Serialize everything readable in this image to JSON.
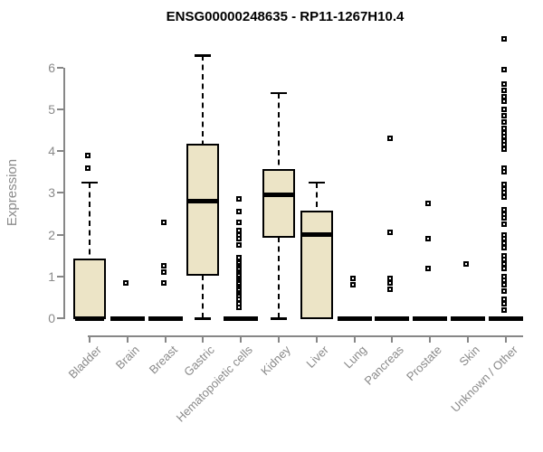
{
  "title": "ENSG00000248635 - RP11-1267H10.4",
  "chart_data": {
    "type": "boxplot",
    "title": "ENSG00000248635 - RP11-1267H10.4",
    "xlabel": "",
    "ylabel": "Expression",
    "ylim": [
      0,
      6.8
    ],
    "yticks": [
      0,
      1,
      2,
      3,
      4,
      5,
      6
    ],
    "grid": false,
    "legend": "none",
    "box_fill": "#ece4c6",
    "box_border": "#000000",
    "axis_color": "#878787",
    "tick_label_color": "#8a8a8a",
    "title_color": "#000000",
    "categories": [
      "Bladder",
      "Brain",
      "Breast",
      "Gastric",
      "Hematopoietic cells",
      "Kidney",
      "Liver",
      "Lung",
      "Pancreas",
      "Prostate",
      "Skin",
      "Unknown / Other"
    ],
    "series": [
      {
        "category": "Bladder",
        "q1": 0,
        "median": 0,
        "q3": 1.4,
        "whisker_low": 0,
        "whisker_high": 3.25,
        "outliers": [
          3.6,
          3.9
        ]
      },
      {
        "category": "Brain",
        "q1": 0,
        "median": 0,
        "q3": 0,
        "whisker_low": 0,
        "whisker_high": 0,
        "outliers": [
          0.85
        ]
      },
      {
        "category": "Breast",
        "q1": 0,
        "median": 0,
        "q3": 0,
        "whisker_low": 0,
        "whisker_high": 0,
        "outliers": [
          0.85,
          1.1,
          1.25,
          2.3
        ]
      },
      {
        "category": "Gastric",
        "q1": 1.05,
        "median": 2.8,
        "q3": 4.15,
        "whisker_low": 0,
        "whisker_high": 6.3,
        "outliers": []
      },
      {
        "category": "Hematopoietic cells",
        "q1": 0,
        "median": 0,
        "q3": 0,
        "whisker_low": 0,
        "whisker_high": 0,
        "outliers": [
          0.25,
          0.35,
          0.45,
          0.55,
          0.6,
          0.65,
          0.7,
          0.75,
          0.8,
          0.85,
          0.9,
          0.95,
          1.0,
          1.05,
          1.1,
          1.15,
          1.2,
          1.25,
          1.3,
          1.35,
          1.4,
          1.45,
          1.75,
          1.9,
          2.0,
          2.1,
          2.3,
          2.55,
          2.85
        ]
      },
      {
        "category": "Kidney",
        "q1": 1.95,
        "median": 2.95,
        "q3": 3.55,
        "whisker_low": 0,
        "whisker_high": 5.4,
        "outliers": []
      },
      {
        "category": "Liver",
        "q1": 0,
        "median": 2.0,
        "q3": 2.55,
        "whisker_low": 0,
        "whisker_high": 3.25,
        "outliers": []
      },
      {
        "category": "Lung",
        "q1": 0,
        "median": 0,
        "q3": 0,
        "whisker_low": 0,
        "whisker_high": 0,
        "outliers": [
          0.8,
          0.95
        ]
      },
      {
        "category": "Pancreas",
        "q1": 0,
        "median": 0,
        "q3": 0,
        "whisker_low": 0,
        "whisker_high": 0,
        "outliers": [
          0.7,
          0.85,
          0.95,
          2.05,
          4.3
        ]
      },
      {
        "category": "Prostate",
        "q1": 0,
        "median": 0,
        "q3": 0,
        "whisker_low": 0,
        "whisker_high": 0,
        "outliers": [
          1.2,
          1.9,
          2.75
        ]
      },
      {
        "category": "Skin",
        "q1": 0,
        "median": 0,
        "q3": 0,
        "whisker_low": 0,
        "whisker_high": 0,
        "outliers": [
          1.3
        ]
      },
      {
        "category": "Unknown / Other",
        "q1": 0,
        "median": 0,
        "q3": 0,
        "whisker_low": 0,
        "whisker_high": 0,
        "outliers": [
          0.2,
          0.35,
          0.45,
          0.65,
          0.8,
          0.9,
          1.0,
          1.2,
          1.3,
          1.4,
          1.5,
          1.7,
          1.8,
          1.9,
          2.0,
          2.25,
          2.4,
          2.5,
          2.6,
          2.9,
          3.0,
          3.1,
          3.2,
          3.5,
          3.6,
          4.05,
          4.15,
          4.25,
          4.35,
          4.45,
          4.55,
          4.7,
          4.85,
          5.0,
          5.2,
          5.3,
          5.45,
          5.6,
          5.95,
          6.7
        ]
      }
    ]
  }
}
